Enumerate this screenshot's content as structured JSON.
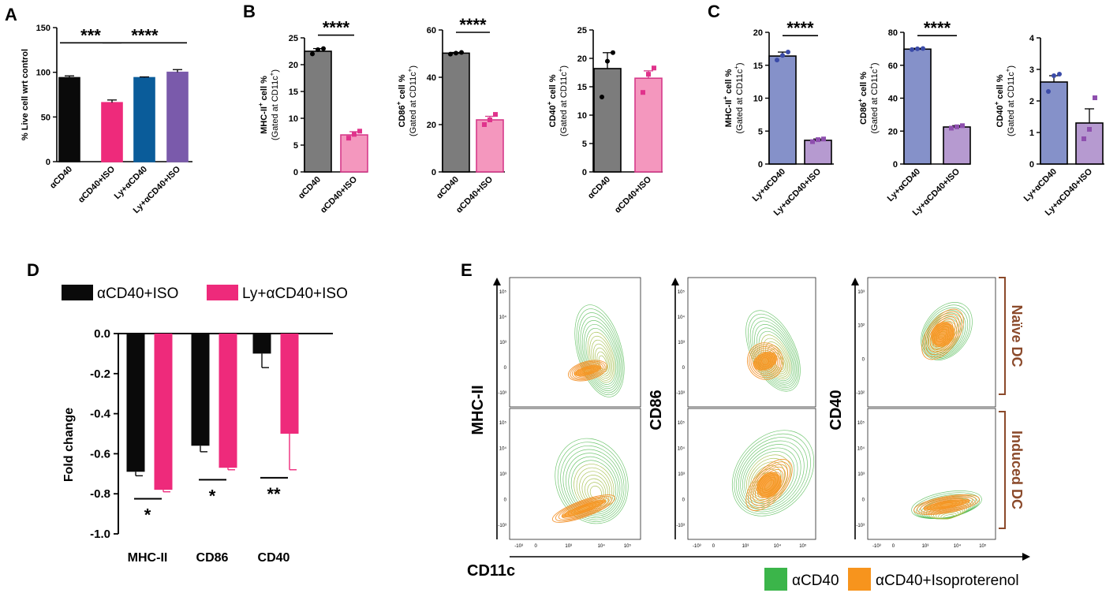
{
  "panels": {
    "A": "A",
    "B": "B",
    "C": "C",
    "D": "D",
    "E": "E"
  },
  "colors": {
    "black": "#0a0a0a",
    "pink": "#ee2a7b",
    "blue": "#0a5c9a",
    "purple": "#7a5aab",
    "grey": "#7c7c7c",
    "lightpink": "#f497be",
    "periwinkle": "#8591c9",
    "lavender": "#b69ad0",
    "green": "#3bb54a",
    "orange": "#f7941d",
    "brown": "#8b4a2b"
  },
  "chart_data": [
    {
      "id": "A",
      "type": "bar",
      "ylabel": "% Live cell wrt control",
      "ylim": [
        0,
        150
      ],
      "yticks": [
        0,
        50,
        100,
        150
      ],
      "categories": [
        "αCD40",
        "αCD40+ISO",
        "Ly+αCD40",
        "Ly+αCD40+ISO"
      ],
      "values": [
        94,
        66,
        94,
        100
      ],
      "errors": [
        2,
        3,
        0.8,
        3
      ],
      "fills": [
        "#0a0a0a",
        "#ee2a7b",
        "#0a5c9a",
        "#7a5aab"
      ],
      "strokes": [
        "#0a0a0a",
        "#ee2a7b",
        "#0a5c9a",
        "#7a5aab"
      ],
      "points": [
        [],
        [],
        [],
        []
      ],
      "sig": [
        {
          "from": 0,
          "to": 1,
          "y": 133,
          "label": "***"
        },
        {
          "from": 1,
          "to": 3,
          "y": 133,
          "label": "****"
        }
      ]
    },
    {
      "id": "B1",
      "type": "bar",
      "ylabel": "MHC-II",
      "ylabel_sup": "+",
      "ylabel_rest": " cell %",
      "ysub": "(Gated at CD11c",
      "ysub_sup": "+",
      "ysub_end": ")",
      "ylim": [
        0,
        25
      ],
      "yticks": [
        0,
        5,
        10,
        15,
        20,
        25
      ],
      "categories": [
        "αCD40",
        "αCD40+ISO"
      ],
      "values": [
        22.5,
        6.9
      ],
      "errors": [
        0.5,
        0.6
      ],
      "fills": [
        "#7c7c7c",
        "#f497be"
      ],
      "strokes": [
        "#000000",
        "#d63a8a"
      ],
      "points": [
        [
          22.0,
          22.8,
          23.0
        ],
        [
          6.3,
          7.0,
          7.6
        ]
      ],
      "sig": [
        {
          "from": 0,
          "to": 1,
          "y": 25.5,
          "label": "****"
        }
      ]
    },
    {
      "id": "B2",
      "type": "bar",
      "ylabel": "CD86",
      "ylabel_sup": "+",
      "ylabel_rest": " cell %",
      "ysub": "(Gated at CD11c",
      "ysub_sup": "+",
      "ysub_end": ")",
      "ylim": [
        0,
        60
      ],
      "yticks": [
        0,
        20,
        40,
        60
      ],
      "categories": [
        "αCD40",
        "αCD40+ISO"
      ],
      "values": [
        50.2,
        22.0
      ],
      "errors": [
        0.3,
        1.5
      ],
      "fills": [
        "#7c7c7c",
        "#f497be"
      ],
      "strokes": [
        "#000000",
        "#d63a8a"
      ],
      "points": [
        [
          49.8,
          50.2,
          50.5
        ],
        [
          20.0,
          22.0,
          24.3
        ]
      ],
      "sig": [
        {
          "from": 0,
          "to": 1,
          "y": 59,
          "label": "****"
        }
      ]
    },
    {
      "id": "B3",
      "type": "bar",
      "ylabel": "CD40",
      "ylabel_sup": "+",
      "ylabel_rest": " cell %",
      "ysub": "(Gated at CD11c",
      "ysub_sup": "+",
      "ysub_end": ")",
      "ylim": [
        0,
        25
      ],
      "yticks": [
        0,
        5,
        10,
        15,
        20,
        25
      ],
      "categories": [
        "αCD40",
        "αCD40+ISO"
      ],
      "values": [
        18.2,
        16.5
      ],
      "errors": [
        2.8,
        1.3
      ],
      "fills": [
        "#7c7c7c",
        "#f497be"
      ],
      "strokes": [
        "#000000",
        "#d63a8a"
      ],
      "points": [
        [
          13.2,
          19.5,
          21.0
        ],
        [
          14.0,
          17.2,
          18.3
        ]
      ],
      "sig": []
    },
    {
      "id": "C1",
      "type": "bar",
      "ylabel": "MHC-II",
      "ylabel_sup": "+",
      "ylabel_rest": " cell %",
      "ysub": "(Gated at CD11c",
      "ysub_sup": "+",
      "ysub_end": ")",
      "ylim": [
        0,
        20
      ],
      "yticks": [
        0,
        5,
        10,
        15,
        20
      ],
      "categories": [
        "Ly+αCD40",
        "Ly+αCD40+ISO"
      ],
      "values": [
        16.4,
        3.6
      ],
      "errors": [
        0.6,
        0.2
      ],
      "fills": [
        "#8591c9",
        "#b69ad0"
      ],
      "strokes": [
        "#000000",
        "#000000"
      ],
      "points": [
        [
          15.8,
          16.5,
          17.0
        ],
        [
          3.4,
          3.7,
          3.8
        ]
      ],
      "sig": [
        {
          "from": 0,
          "to": 1,
          "y": 19.5,
          "label": "****"
        }
      ]
    },
    {
      "id": "C2",
      "type": "bar",
      "ylabel": "CD86",
      "ylabel_sup": "+",
      "ylabel_rest": " cell %",
      "ysub": "(Gated at CD11c",
      "ysub_sup": "+",
      "ysub_end": ")",
      "ylim": [
        0,
        80
      ],
      "yticks": [
        0,
        20,
        40,
        60,
        80
      ],
      "categories": [
        "Ly+αCD40",
        "Ly+αCD40+ISO"
      ],
      "values": [
        69.8,
        22.5
      ],
      "errors": [
        0.5,
        0.8
      ],
      "fills": [
        "#8591c9",
        "#b69ad0"
      ],
      "strokes": [
        "#000000",
        "#000000"
      ],
      "points": [
        [
          69.5,
          70.0,
          70.2
        ],
        [
          21.8,
          22.6,
          23.3
        ]
      ],
      "sig": [
        {
          "from": 0,
          "to": 1,
          "y": 78,
          "label": "****"
        }
      ]
    },
    {
      "id": "C3",
      "type": "bar",
      "ylabel": "CD40",
      "ylabel_sup": "+",
      "ylabel_rest": " cell %",
      "ysub": "(Gated at CD11c",
      "ysub_sup": "+",
      "ysub_end": ")",
      "ylim": [
        0,
        4
      ],
      "yticks": [
        0,
        1,
        2,
        3,
        4
      ],
      "categories": [
        "Ly+αCD40",
        "Ly+αCD40+ISO"
      ],
      "values": [
        2.6,
        1.3
      ],
      "errors": [
        0.2,
        0.45
      ],
      "fills": [
        "#8591c9",
        "#b69ad0"
      ],
      "strokes": [
        "#000000",
        "#000000"
      ],
      "points": [
        [
          2.3,
          2.8,
          2.85
        ],
        [
          0.8,
          1.1,
          2.1
        ]
      ],
      "sig": []
    },
    {
      "id": "D",
      "type": "bar",
      "ylabel": "Fold change",
      "ylim": [
        -1.0,
        0.0
      ],
      "yticks": [
        0.0,
        -0.2,
        -0.4,
        -0.6,
        -0.8,
        -1.0
      ],
      "ytick_labels": [
        "0.0",
        "-0.2",
        "-0.4",
        "-0.6",
        "-0.8",
        "-1.0"
      ],
      "categories": [
        "MHC-II",
        "CD86",
        "CD40"
      ],
      "series": [
        {
          "name": "αCD40+ISO",
          "values": [
            -0.69,
            -0.56,
            -0.1
          ],
          "errors": [
            0.02,
            0.03,
            0.07
          ],
          "color": "#0a0a0a"
        },
        {
          "name": "Ly+αCD40+ISO",
          "values": [
            -0.78,
            -0.67,
            -0.5
          ],
          "errors": [
            0.01,
            0.01,
            0.18
          ],
          "color": "#ee2a7b"
        }
      ],
      "sig": [
        {
          "label": "*",
          "y": -0.825
        },
        {
          "label": "*",
          "y": -0.73
        },
        {
          "label": "**",
          "y": -0.72
        }
      ]
    }
  ],
  "flow": {
    "y_labels": [
      "MHC-II",
      "CD86",
      "CD40"
    ],
    "x_label": "CD11c",
    "row_labels": [
      "Naïve DC",
      "Induced DC"
    ],
    "y_ticks_mhc": [
      "10⁵",
      "10⁴",
      "10³",
      "0",
      "-10³"
    ],
    "y_ticks_cd86": [
      "10⁵",
      "10⁴",
      "10³",
      "0",
      "-10³"
    ],
    "y_ticks_cd40_top": [
      "10³",
      "10²",
      "0",
      "-10²"
    ],
    "y_ticks_cd40_bottom": [
      "10⁵",
      "10⁴",
      "10³",
      "0",
      "-10³"
    ],
    "x_ticks": [
      "-10³",
      "0",
      "10³",
      "10⁴",
      "10⁵"
    ],
    "legend": [
      {
        "name": "αCD40",
        "color": "#3bb54a"
      },
      {
        "name": "αCD40+Isoproterenol",
        "color": "#f7941d"
      }
    ]
  }
}
